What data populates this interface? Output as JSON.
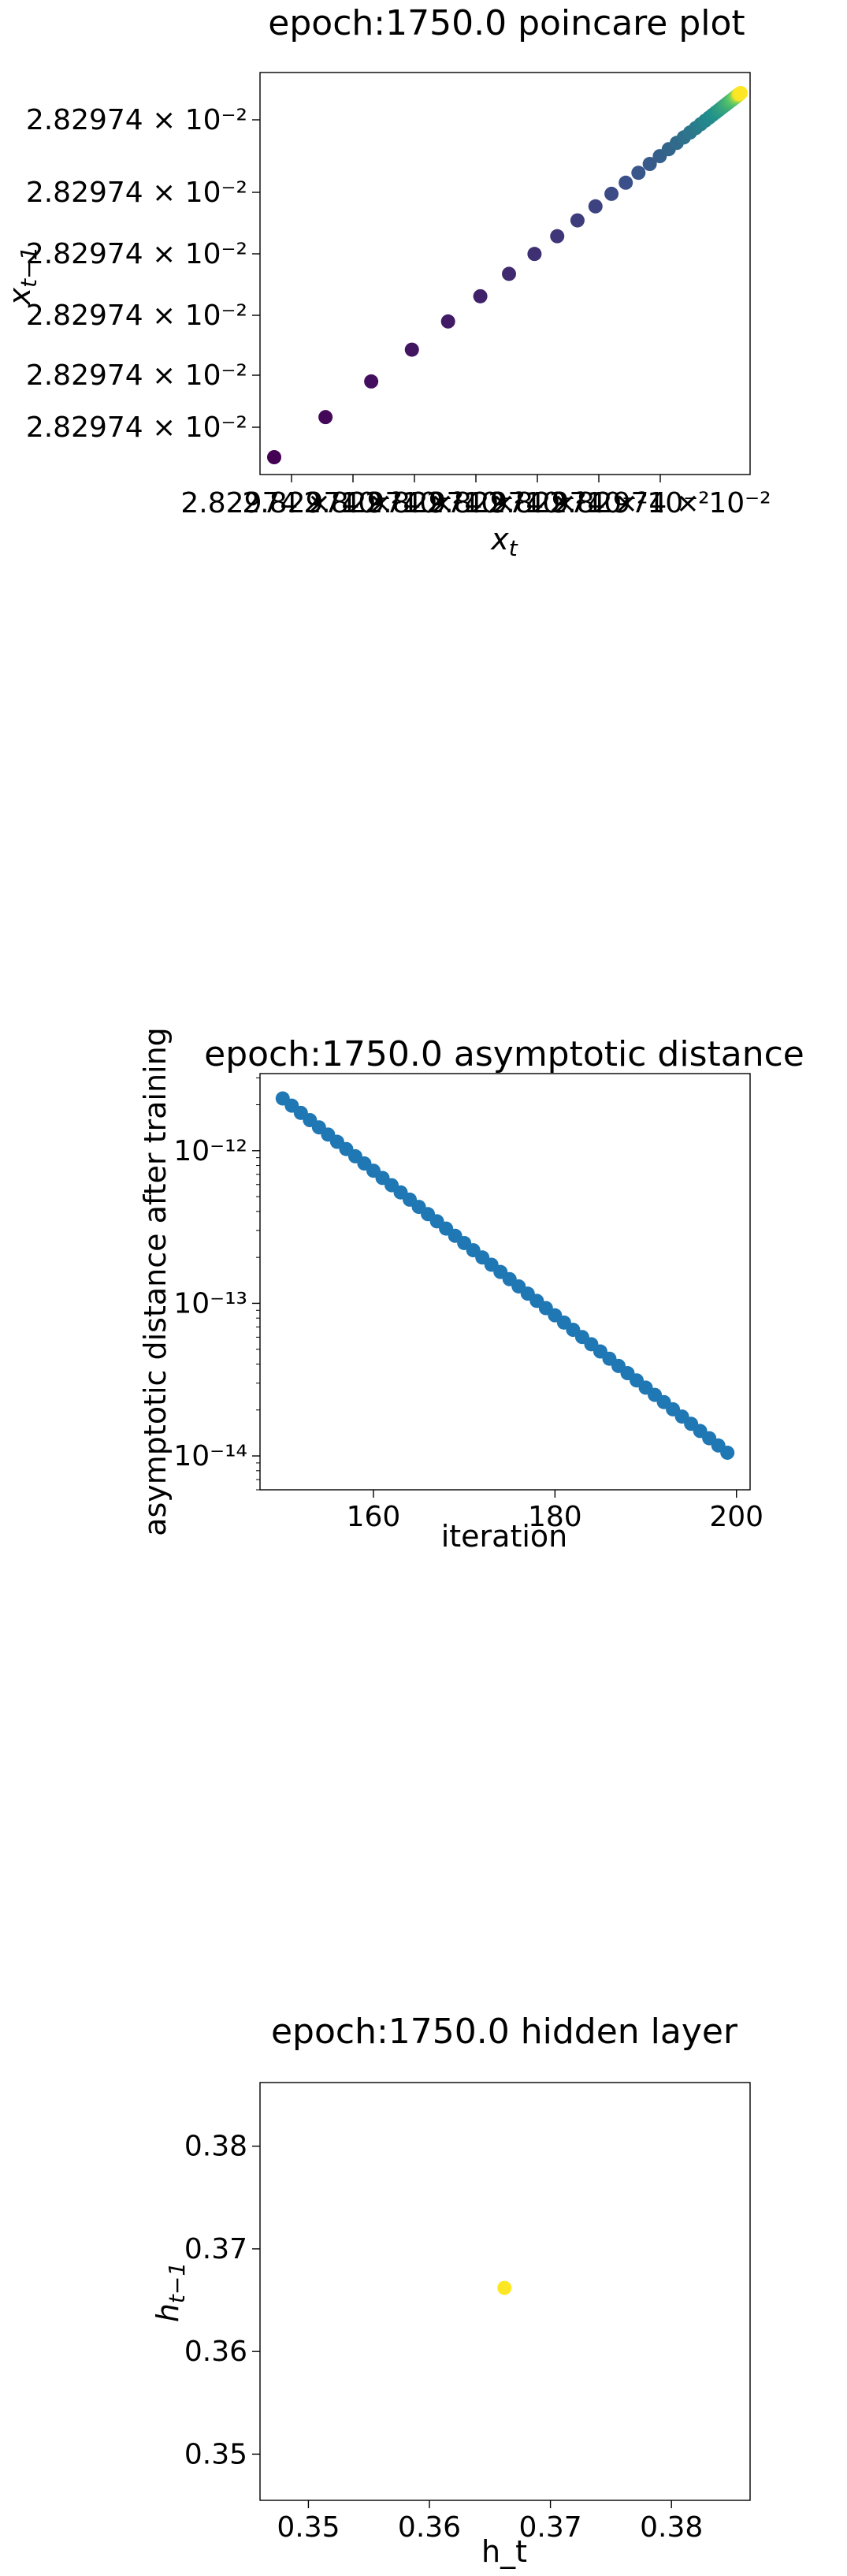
{
  "chart_data": [
    {
      "type": "scatter",
      "title": "epoch:1750.0 poincare plot",
      "xlabel": "x_t",
      "ylabel": "x_{t-1}",
      "colormap": "viridis",
      "x_tick_labels": [
        "2.82974 × 10⁻²",
        "2.82974 × 10⁻²",
        "2.82974 × 10⁻²",
        "2.82974 × 10⁻²",
        "2.82974 × 10⁻²",
        "2.82974 × 10⁻²",
        "2.82974 × 10⁻²"
      ],
      "y_tick_labels": [
        "2.82974 × 10⁻²",
        "2.82974 × 10⁻²",
        "2.82974 × 10⁻²",
        "2.82974 × 10⁻²",
        "2.82974 × 10⁻²",
        "2.82974 × 10⁻²"
      ],
      "grid": false,
      "point_count": 50,
      "x": [
        0.0,
        0.11,
        0.208,
        0.2952,
        0.3728,
        0.4419,
        0.5034,
        0.5581,
        0.6068,
        0.6502,
        0.6888,
        0.7231,
        0.7537,
        0.7809,
        0.8051,
        0.8267,
        0.8459,
        0.863,
        0.8782,
        0.8917,
        0.9038,
        0.9145,
        0.9241,
        0.9326,
        0.9401,
        0.9469,
        0.9529,
        0.9582,
        0.9629,
        0.9671,
        0.9709,
        0.9742,
        0.9772,
        0.9798,
        0.9822,
        0.9843,
        0.9861,
        0.9878,
        0.9893,
        0.9906,
        0.9917,
        0.9928,
        0.9937,
        0.9946,
        0.9953,
        0.996,
        0.9966,
        0.9971,
        0.9976,
        1.0
      ],
      "y": [
        0.0,
        0.11,
        0.208,
        0.2952,
        0.3728,
        0.4419,
        0.5034,
        0.5581,
        0.6068,
        0.6502,
        0.6888,
        0.7231,
        0.7537,
        0.7809,
        0.8051,
        0.8267,
        0.8459,
        0.863,
        0.8782,
        0.8917,
        0.9038,
        0.9145,
        0.9241,
        0.9326,
        0.9401,
        0.9469,
        0.9529,
        0.9582,
        0.9629,
        0.9671,
        0.9709,
        0.9742,
        0.9772,
        0.9798,
        0.9822,
        0.9843,
        0.9861,
        0.9878,
        0.9893,
        0.9906,
        0.9917,
        0.9928,
        0.9937,
        0.9946,
        0.9953,
        0.996,
        0.9966,
        0.9971,
        0.9976,
        1.0
      ]
    },
    {
      "type": "scatter",
      "title": "epoch:1750.0 asymptotic distance",
      "xlabel": "iteration",
      "ylabel": "asymptotic distance after training",
      "yscale": "log",
      "color": "#1f77b4",
      "x_ticks": [
        160,
        180,
        200
      ],
      "x_tick_labels": [
        "160",
        "180",
        "200"
      ],
      "y_ticks": [
        1e-14,
        1e-13,
        1e-12
      ],
      "y_tick_labels": [
        "10⁻¹⁴",
        "10⁻¹³",
        "10⁻¹²"
      ],
      "xlim": [
        147.5,
        201.5
      ],
      "ylim": [
        6e-15,
        3.2e-12
      ],
      "grid": false,
      "x": [
        150,
        199
      ],
      "y": [
        2.2e-12,
        1.05e-14
      ],
      "series_rule": "log-linear decay, one point per iteration 150–199"
    },
    {
      "type": "scatter",
      "title": "epoch:1750.0 hidden layer",
      "xlabel": "h_t",
      "ylabel": "h_{t-1}",
      "color": "#fde725",
      "x_ticks": [
        0.35,
        0.36,
        0.37,
        0.38
      ],
      "x_tick_labels": [
        "0.35",
        "0.36",
        "0.37",
        "0.38"
      ],
      "y_ticks": [
        0.35,
        0.36,
        0.37,
        0.38
      ],
      "y_tick_labels": [
        "0.35",
        "0.36",
        "0.37",
        "0.38"
      ],
      "xlim": [
        0.346,
        0.3865
      ],
      "ylim": [
        0.3455,
        0.3862
      ],
      "grid": false,
      "x": [
        0.3662
      ],
      "y": [
        0.3662
      ]
    }
  ]
}
